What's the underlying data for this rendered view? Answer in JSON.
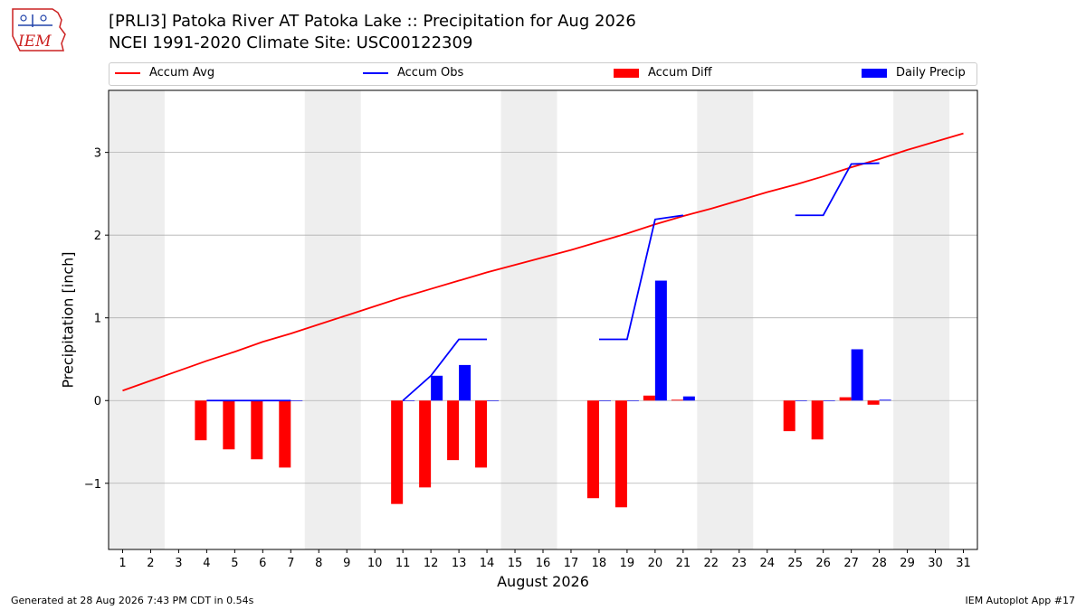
{
  "logo": {
    "text": "IEM"
  },
  "title_line1": "[PRLI3] Patoka River  AT Patoka Lake :: Precipitation for Aug 2026",
  "title_line2": "NCEI 1991-2020 Climate Site: USC00122309",
  "footer_left": "Generated at 28 Aug 2026 7:43 PM CDT in 0.54s",
  "footer_right": "IEM Autoplot App #17",
  "colors": {
    "accum_avg": "#ff0000",
    "accum_obs": "#0000ff",
    "accum_diff": "#ff0000",
    "daily_precip": "#0000ff",
    "weekend_shade": "#eeeeee",
    "grid": "#b0b0b0"
  },
  "chart_data": {
    "type": "bar",
    "xlabel": "August 2026",
    "ylabel": "Precipitation [inch]",
    "x_ticks": [
      1,
      2,
      3,
      4,
      5,
      6,
      7,
      8,
      9,
      10,
      11,
      12,
      13,
      14,
      15,
      16,
      17,
      18,
      19,
      20,
      21,
      22,
      23,
      24,
      25,
      26,
      27,
      28,
      29,
      30,
      31
    ],
    "y_ticks": [
      -1,
      0,
      1,
      2,
      3
    ],
    "y_tick_labels": [
      "−1",
      "0",
      "1",
      "2",
      "3"
    ],
    "xlim": [
      0.5,
      31.5
    ],
    "ylim": [
      -1.8,
      3.75
    ],
    "grid": "y",
    "legend_position": "top",
    "weekend_shading": [
      [
        0.5,
        2.5
      ],
      [
        7.5,
        9.5
      ],
      [
        14.5,
        16.5
      ],
      [
        21.5,
        23.5
      ],
      [
        28.5,
        30.5
      ]
    ],
    "series": [
      {
        "name": "Accum Avg",
        "kind": "line",
        "x": [
          1,
          2,
          3,
          4,
          5,
          6,
          7,
          8,
          9,
          10,
          11,
          12,
          13,
          14,
          15,
          16,
          17,
          18,
          19,
          20,
          21,
          22,
          23,
          24,
          25,
          26,
          27,
          28,
          29,
          30,
          31
        ],
        "values": [
          0.12,
          0.24,
          0.36,
          0.48,
          0.59,
          0.71,
          0.81,
          0.92,
          1.03,
          1.14,
          1.25,
          1.35,
          1.45,
          1.55,
          1.64,
          1.73,
          1.82,
          1.92,
          2.02,
          2.13,
          2.23,
          2.32,
          2.42,
          2.52,
          2.61,
          2.71,
          2.82,
          2.92,
          3.03,
          3.13,
          3.23
        ]
      },
      {
        "name": "Accum Obs",
        "kind": "line",
        "segments": [
          {
            "x": [
              4,
              5,
              6,
              7
            ],
            "values": [
              0.0,
              0.0,
              0.0,
              0.0
            ]
          },
          {
            "x": [
              11,
              12,
              13,
              14
            ],
            "values": [
              0.0,
              0.3,
              0.74,
              0.74
            ]
          },
          {
            "x": [
              18,
              19,
              20,
              21
            ],
            "values": [
              0.74,
              0.74,
              2.19,
              2.24
            ]
          },
          {
            "x": [
              25,
              26,
              27,
              28
            ],
            "values": [
              2.24,
              2.24,
              2.86,
              2.87
            ]
          }
        ]
      },
      {
        "name": "Accum Diff",
        "kind": "bar",
        "x": [
          4,
          5,
          6,
          7,
          11,
          12,
          13,
          14,
          18,
          19,
          20,
          21,
          25,
          26,
          27,
          28
        ],
        "values": [
          -0.48,
          -0.59,
          -0.71,
          -0.81,
          -1.25,
          -1.05,
          -0.72,
          -0.81,
          -1.18,
          -1.29,
          0.06,
          0.01,
          -0.37,
          -0.47,
          0.04,
          -0.05
        ]
      },
      {
        "name": "Daily Precip",
        "kind": "bar",
        "x": [
          4,
          5,
          6,
          7,
          11,
          12,
          13,
          14,
          18,
          19,
          20,
          21,
          25,
          26,
          27,
          28
        ],
        "values": [
          0.0,
          0.0,
          0.0,
          0.0,
          0.0,
          0.3,
          0.43,
          0.0,
          0.0,
          0.0,
          1.45,
          0.05,
          0.0,
          0.0,
          0.62,
          0.01
        ]
      }
    ]
  }
}
